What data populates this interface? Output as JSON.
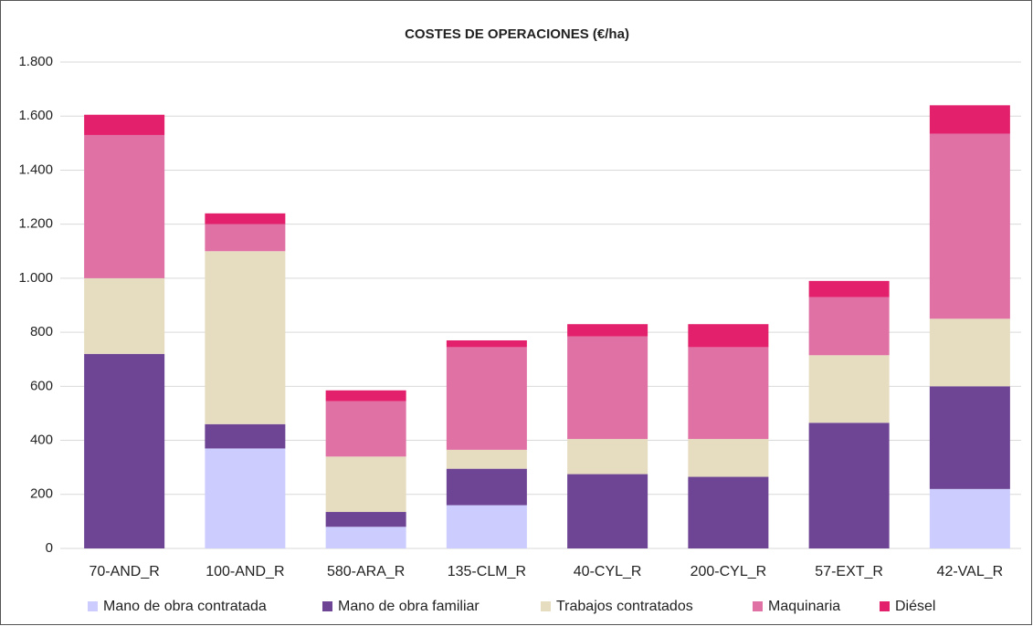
{
  "chart_data": {
    "type": "stacked_bar",
    "title": "COSTES DE OPERACIONES (€/ha)",
    "categories": [
      "70-AND_R",
      "100-AND_R",
      "580-ARA_R",
      "135-CLM_R",
      "40-CYL_R",
      "200-CYL_R",
      "57-EXT_R",
      "42-VAL_R"
    ],
    "series": [
      {
        "name": "Mano de obra contratada",
        "color": "#ccccff",
        "values": [
          0,
          370,
          80,
          160,
          0,
          0,
          0,
          220
        ]
      },
      {
        "name": "Mano de obra familiar",
        "color": "#6d4594",
        "values": [
          720,
          90,
          55,
          135,
          275,
          265,
          465,
          380
        ]
      },
      {
        "name": "Trabajos contratados",
        "color": "#e6dcc0",
        "values": [
          280,
          640,
          205,
          70,
          130,
          140,
          250,
          250
        ]
      },
      {
        "name": "Maquinaria",
        "color": "#df71a5",
        "values": [
          530,
          100,
          205,
          380,
          380,
          340,
          215,
          685
        ]
      },
      {
        "name": "Diésel",
        "color": "#e2206b",
        "values": [
          75,
          40,
          40,
          25,
          45,
          85,
          60,
          105
        ]
      }
    ],
    "ylim": [
      0,
      1800
    ],
    "yticks": [
      0,
      200,
      400,
      600,
      800,
      {
        "value": 1000,
        "label": "1.000"
      },
      {
        "value": 1200,
        "label": "1.200"
      },
      {
        "value": 1400,
        "label": "1.400"
      },
      {
        "value": 1600,
        "label": "1.600"
      },
      {
        "value": 1800,
        "label": "1.800"
      }
    ],
    "grid": true,
    "legend": "bottom"
  }
}
